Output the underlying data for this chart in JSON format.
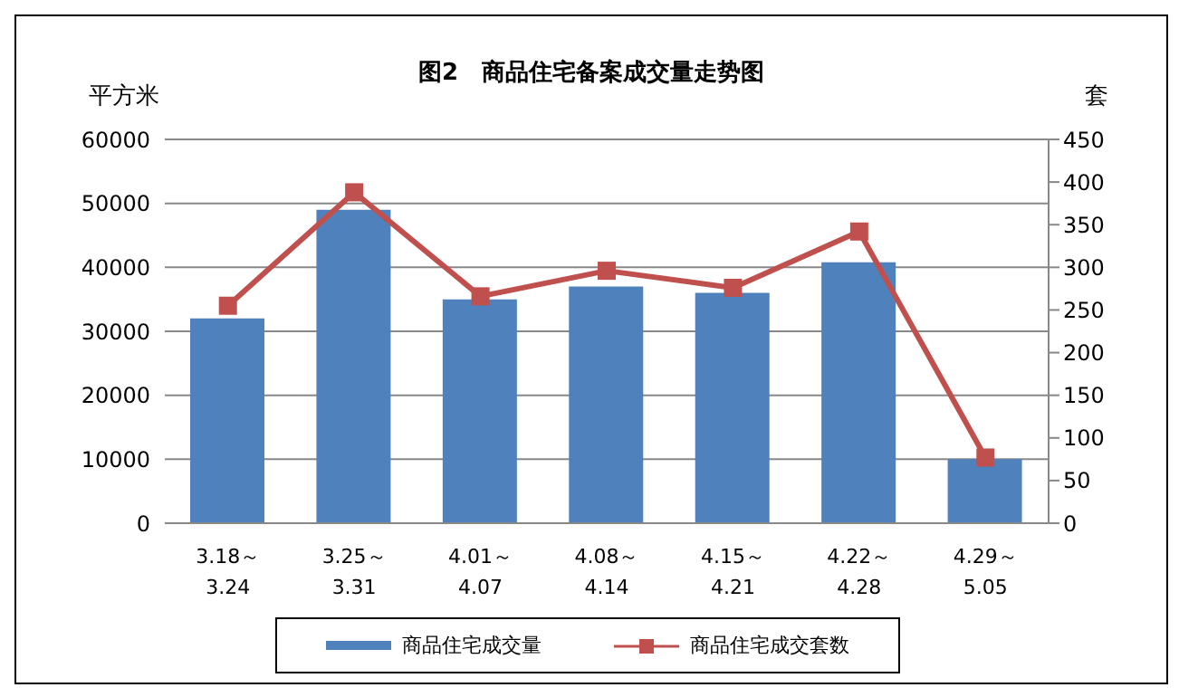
{
  "chart_data": {
    "type": "bar",
    "title": "图2　商品住宅备案成交量走势图",
    "ylabel": "平方米",
    "y2label": "套",
    "categories": [
      "3.18～\n3.24",
      "3.25～\n3.31",
      "4.01～\n4.07",
      "4.08～\n4.14",
      "4.15～\n4.21",
      "4.22～\n4.28",
      "4.29～\n5.05"
    ],
    "series": [
      {
        "name": "商品住宅成交量",
        "color": "#4f81bd",
        "values": [
          32000,
          49000,
          35000,
          37000,
          36000,
          40800,
          10000
        ]
      },
      {
        "name": "商品住宅成交套数",
        "type": "line",
        "axis": "y2",
        "color": "#c0504d",
        "marker": "square",
        "values": [
          255,
          388,
          266,
          296,
          276,
          342,
          77
        ]
      }
    ],
    "ylim": [
      0,
      60000
    ],
    "yticks": [
      0,
      10000,
      20000,
      30000,
      40000,
      50000,
      60000
    ],
    "y2lim": [
      0,
      450
    ],
    "y2ticks": [
      0,
      50,
      100,
      150,
      200,
      250,
      300,
      350,
      400,
      450
    ],
    "grid": "y",
    "legend": "bottom"
  }
}
